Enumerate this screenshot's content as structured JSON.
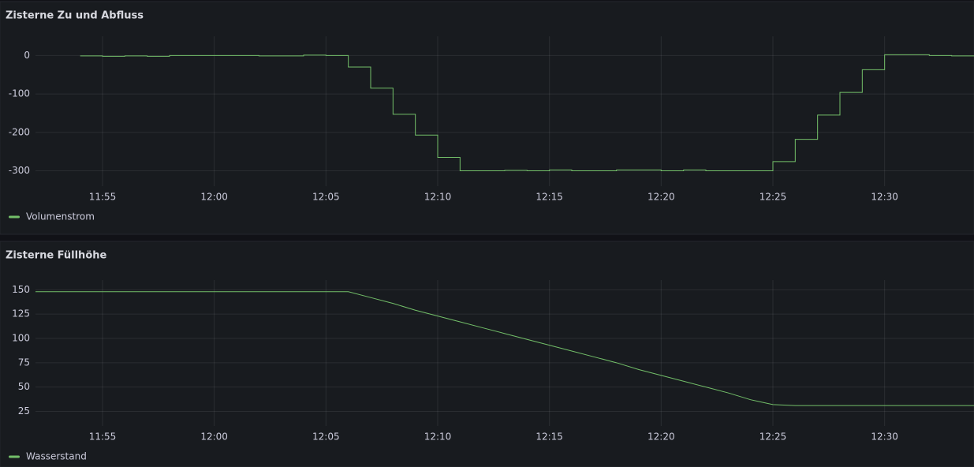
{
  "chart_data": [
    {
      "type": "line",
      "title": "Zisterne Zu und Abfluss",
      "line_interpolation": "stepAfter",
      "grid": true,
      "x": [
        "11:54",
        "11:55",
        "11:56",
        "11:57",
        "11:58",
        "11:59",
        "12:00",
        "12:01",
        "12:02",
        "12:03",
        "12:04",
        "12:05",
        "12:06",
        "12:07",
        "12:08",
        "12:09",
        "12:10",
        "12:11",
        "12:12",
        "12:13",
        "12:14",
        "12:15",
        "12:16",
        "12:17",
        "12:18",
        "12:19",
        "12:20",
        "12:21",
        "12:22",
        "12:23",
        "12:24",
        "12:25",
        "12:26",
        "12:27",
        "12:28",
        "12:29",
        "12:30",
        "12:31",
        "12:32",
        "12:33",
        "12:34"
      ],
      "series": [
        {
          "name": "Volumenstrom",
          "color": "#73bf69",
          "values": [
            -1,
            -2,
            -1,
            -2,
            0,
            0,
            0,
            0,
            -1,
            -1,
            1,
            0,
            -30,
            -85,
            -153,
            -207,
            -265,
            -300,
            -300,
            -299,
            -300,
            -298,
            -300,
            -300,
            -298,
            -298,
            -300,
            -298,
            -300,
            -300,
            -300,
            -276,
            -218,
            -155,
            -96,
            -37,
            2,
            2,
            0,
            -1,
            -1
          ]
        }
      ],
      "xlim": [
        "11:52",
        "12:34"
      ],
      "xticks": [
        "11:55",
        "12:00",
        "12:05",
        "12:10",
        "12:15",
        "12:20",
        "12:25",
        "12:30"
      ],
      "ylim": [
        -340,
        50
      ],
      "yticks": [
        0,
        -100,
        -200,
        -300
      ]
    },
    {
      "type": "line",
      "title": "Zisterne Füllhöhe",
      "line_interpolation": "linear",
      "grid": true,
      "x": [
        "11:52",
        "11:53",
        "11:54",
        "11:55",
        "11:56",
        "11:57",
        "11:58",
        "11:59",
        "12:00",
        "12:01",
        "12:02",
        "12:03",
        "12:04",
        "12:05",
        "12:06",
        "12:07",
        "12:08",
        "12:09",
        "12:10",
        "12:11",
        "12:12",
        "12:13",
        "12:14",
        "12:15",
        "12:16",
        "12:17",
        "12:18",
        "12:19",
        "12:20",
        "12:21",
        "12:22",
        "12:23",
        "12:24",
        "12:25",
        "12:26",
        "12:27",
        "12:28",
        "12:29",
        "12:30",
        "12:31",
        "12:32",
        "12:33",
        "12:34"
      ],
      "series": [
        {
          "name": "Wasserstand",
          "color": "#73bf69",
          "values": [
            148,
            148,
            148,
            148,
            148,
            148,
            148,
            148,
            148,
            148,
            148,
            148,
            148,
            148,
            148,
            142,
            136,
            129,
            123,
            117,
            111,
            105,
            99,
            93,
            87,
            81,
            75,
            68,
            62,
            56,
            50,
            44,
            37,
            32,
            31,
            31,
            31,
            31,
            31,
            31,
            31,
            31,
            31
          ]
        }
      ],
      "xlim": [
        "11:52",
        "12:34"
      ],
      "xticks": [
        "11:55",
        "12:00",
        "12:05",
        "12:10",
        "12:15",
        "12:20",
        "12:25",
        "12:30"
      ],
      "ylim": [
        10,
        160
      ],
      "yticks": [
        150,
        125,
        100,
        75,
        50,
        25
      ]
    }
  ]
}
